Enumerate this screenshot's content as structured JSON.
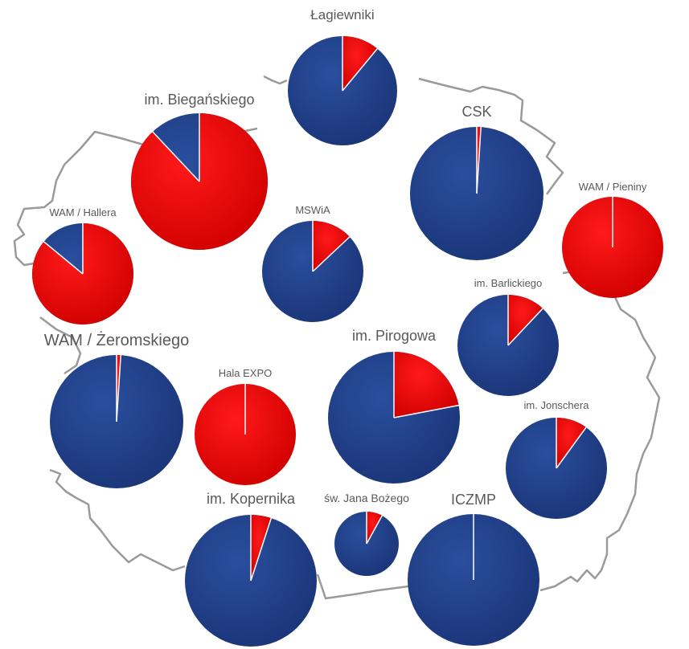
{
  "colors": {
    "red": "#e60000",
    "blue": "#1f3f8a",
    "border": "#9a9a9a",
    "label": "#595959"
  },
  "chart_data": {
    "type": "pie",
    "series_colors": [
      "red",
      "blue"
    ],
    "pies": [
      {
        "label": "Łagiewniki",
        "red_share": 0.11
      },
      {
        "label": "im. Biegańskiego",
        "red_share": 0.88
      },
      {
        "label": "CSK",
        "red_share": 0.01
      },
      {
        "label": "WAM / Pieniny",
        "red_share": 1.0
      },
      {
        "label": "WAM / Hallera",
        "red_share": 0.86
      },
      {
        "label": "MSWiA",
        "red_share": 0.13
      },
      {
        "label": "im. Barlickiego",
        "red_share": 0.12
      },
      {
        "label": "WAM / Żeromskiego",
        "red_share": 0.01
      },
      {
        "label": "Hala EXPO",
        "red_share": 1.0
      },
      {
        "label": "im. Pirogowa",
        "red_share": 0.22
      },
      {
        "label": "im. Jonschera",
        "red_share": 0.1
      },
      {
        "label": "im. Kopernika",
        "red_share": 0.05
      },
      {
        "label": "św. Jana Bożego",
        "red_share": 0.08
      },
      {
        "label": "ICZMP",
        "red_share": 0.0
      }
    ]
  }
}
